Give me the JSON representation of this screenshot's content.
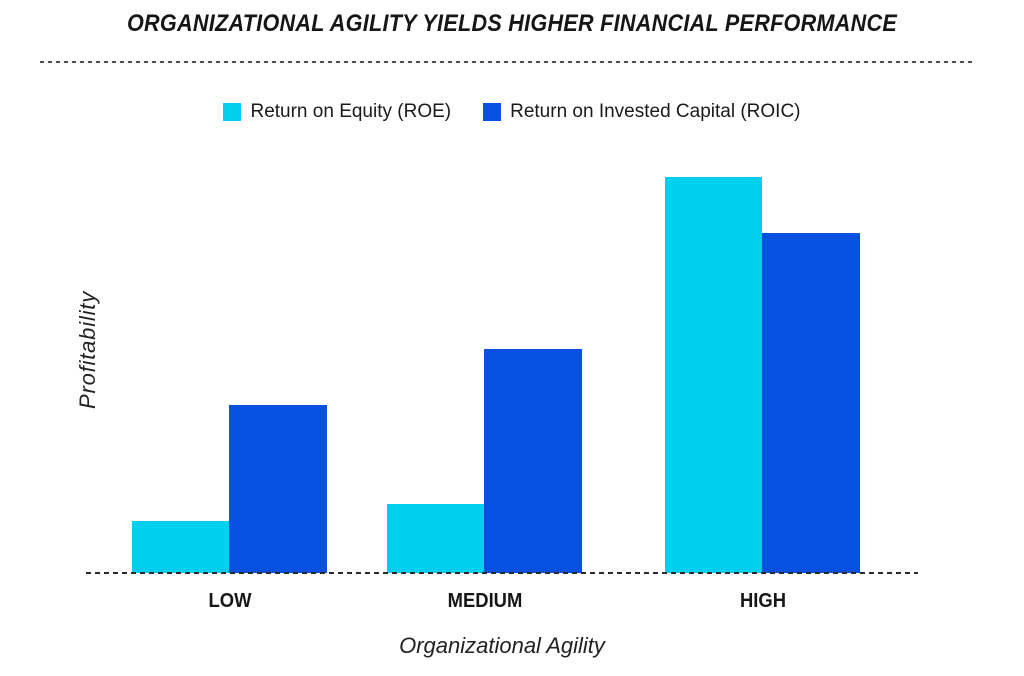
{
  "chart_data": {
    "type": "bar",
    "title": "ORGANIZATIONAL AGILITY YIELDS HIGHER FINANCIAL PERFORMANCE",
    "xlabel": "Organizational Agility",
    "ylabel": "Profitability",
    "categories": [
      "LOW",
      "MEDIUM",
      "HIGH"
    ],
    "series": [
      {
        "name": "Return on Equity (ROE)",
        "color": "#00CFF0",
        "values": [
          12,
          16,
          92
        ]
      },
      {
        "name": "Return on Invested Capital (ROIC)",
        "color": "#0850E0",
        "values": [
          39,
          52,
          79
        ]
      }
    ],
    "ylim": [
      0,
      100
    ],
    "value_scale": "relative units (no numeric axis labels shown)",
    "grid": false,
    "legend_position": "top",
    "background": "#FFFFFF",
    "divider_style": "dashed",
    "baseline_style": "dashed"
  }
}
